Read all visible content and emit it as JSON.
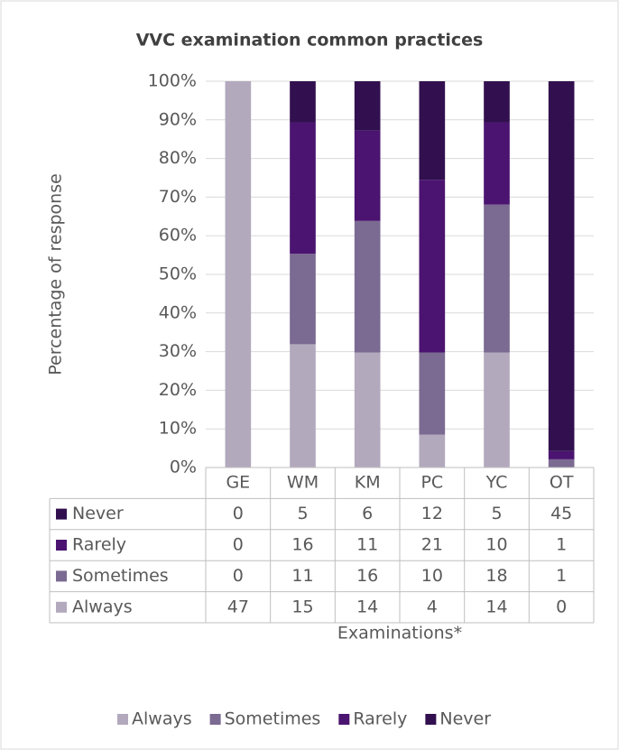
{
  "chart_data": {
    "type": "bar",
    "stacked_percent": true,
    "title": "VVC examination common practices",
    "y_label": "Percentage of response",
    "x_label": "Examinations*",
    "categories": [
      "GE",
      "WM",
      "KM",
      "PC",
      "YC",
      "OT"
    ],
    "series": [
      {
        "name": "Always",
        "color": "#b3a9bd",
        "values": [
          47,
          15,
          14,
          4,
          14,
          0
        ]
      },
      {
        "name": "Sometimes",
        "color": "#7b6a91",
        "values": [
          0,
          11,
          16,
          10,
          18,
          1
        ]
      },
      {
        "name": "Rarely",
        "color": "#4b1470",
        "values": [
          0,
          16,
          11,
          21,
          10,
          1
        ]
      },
      {
        "name": "Never",
        "color": "#32104f",
        "values": [
          0,
          5,
          6,
          12,
          5,
          45
        ]
      }
    ],
    "ylim": [
      0,
      100
    ],
    "yticks": [
      {
        "value": 0,
        "label": "0%"
      },
      {
        "value": 10,
        "label": "10%"
      },
      {
        "value": 20,
        "label": "20%"
      },
      {
        "value": 30,
        "label": "30%"
      },
      {
        "value": 40,
        "label": "40%"
      },
      {
        "value": 50,
        "label": "50%"
      },
      {
        "value": 60,
        "label": "60%"
      },
      {
        "value": 70,
        "label": "70%"
      },
      {
        "value": 80,
        "label": "80%"
      },
      {
        "value": 90,
        "label": "90%"
      },
      {
        "value": 100,
        "label": "100%"
      }
    ],
    "grid": true,
    "legend": "bottom",
    "data_table": true
  }
}
